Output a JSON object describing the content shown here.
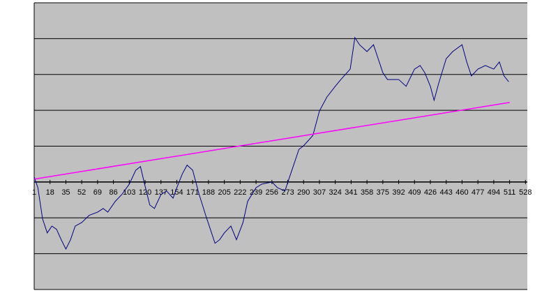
{
  "chart_data": {
    "type": "line",
    "xlim": [
      1,
      530
    ],
    "xticks": [
      1,
      18,
      35,
      52,
      69,
      86,
      103,
      120,
      137,
      154,
      171,
      188,
      205,
      222,
      239,
      256,
      273,
      290,
      307,
      324,
      341,
      358,
      375,
      392,
      409,
      426,
      443,
      460,
      477,
      494,
      511,
      528
    ],
    "ylim": [
      -3,
      5
    ],
    "yticks": [
      -3,
      -2,
      -1,
      0,
      1,
      2,
      3,
      4,
      5
    ],
    "ytick_labels": false,
    "grid": true,
    "background": "#c0c0c0",
    "series": [
      {
        "color": "#000080",
        "x": [
          1,
          5,
          10,
          15,
          20,
          25,
          30,
          35,
          40,
          45,
          52,
          60,
          69,
          75,
          80,
          88,
          95,
          103,
          110,
          115,
          120,
          125,
          130,
          137,
          143,
          150,
          154,
          160,
          165,
          171,
          178,
          185,
          190,
          195,
          200,
          205,
          212,
          218,
          225,
          230,
          239,
          245,
          256,
          262,
          270,
          275,
          285,
          290,
          300,
          307,
          315,
          324,
          330,
          340,
          345,
          350,
          358,
          365,
          370,
          375,
          380,
          392,
          400,
          409,
          415,
          420,
          426,
          430,
          435,
          443,
          450,
          460,
          465,
          470,
          477,
          485,
          494,
          500,
          505,
          510
        ],
        "values": [
          0.14,
          -0.16,
          -1.03,
          -1.42,
          -1.23,
          -1.32,
          -1.61,
          -1.87,
          -1.61,
          -1.23,
          -1.13,
          -0.93,
          -0.84,
          -0.74,
          -0.84,
          -0.54,
          -0.35,
          -0.06,
          0.33,
          0.43,
          -0.12,
          -0.64,
          -0.74,
          -0.35,
          -0.25,
          -0.45,
          -0.16,
          0.23,
          0.47,
          0.33,
          -0.35,
          -0.93,
          -1.32,
          -1.71,
          -1.61,
          -1.42,
          -1.23,
          -1.61,
          -1.13,
          -0.54,
          -0.16,
          -0.06,
          0,
          -0.16,
          -0.25,
          0.14,
          0.91,
          1.01,
          1.3,
          1.98,
          2.37,
          2.67,
          2.86,
          3.15,
          4.03,
          3.83,
          3.64,
          3.83,
          3.44,
          3.05,
          2.86,
          2.86,
          2.67,
          3.15,
          3.25,
          3.05,
          2.67,
          2.28,
          2.76,
          3.44,
          3.64,
          3.83,
          3.35,
          2.96,
          3.15,
          3.25,
          3.15,
          3.35,
          2.96,
          2.8
        ]
      },
      {
        "color": "#ff00ff",
        "x": [
          1,
          511
        ],
        "values": [
          0.08,
          2.22
        ]
      }
    ]
  }
}
